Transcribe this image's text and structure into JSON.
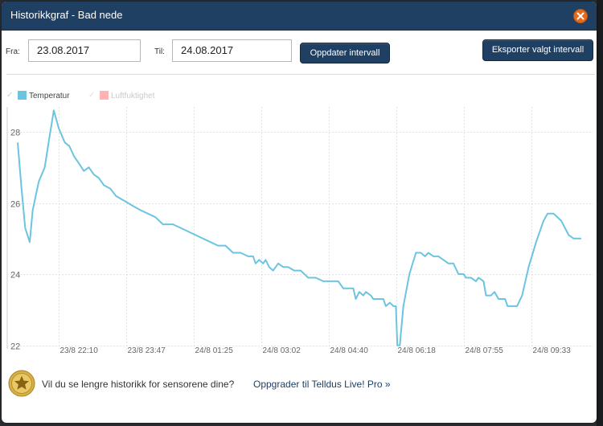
{
  "window": {
    "title": "Historikkgraf - Bad nede"
  },
  "controls": {
    "from_label": "Fra:",
    "from_value": "23.08.2017",
    "to_label": "Til:",
    "to_value": "24.08.2017",
    "update_button": "Oppdater intervall",
    "export_button": "Eksporter valgt intervall"
  },
  "legend": [
    {
      "label": "Temperatur",
      "color": "#6cc4e0",
      "active": true
    },
    {
      "label": "Luftfuktighet",
      "color": "#ffb3b3",
      "active": false
    }
  ],
  "chart_data": {
    "type": "line",
    "x_tick_labels": [
      "23/8 22:10",
      "23/8 23:47",
      "24/8 01:25",
      "24/8 03:02",
      "24/8 04:40",
      "24/8 06:18",
      "24/8 07:55",
      "24/8 09:33"
    ],
    "y_ticks": [
      22,
      24,
      26,
      28
    ],
    "ylim": [
      21.9,
      28.7
    ],
    "xlim": [
      0,
      100
    ],
    "grid": true,
    "series": [
      {
        "name": "Temperatur",
        "color": "#6cc4e0",
        "points": [
          [
            0,
            27.7
          ],
          [
            0.7,
            26.5
          ],
          [
            1.5,
            25.3
          ],
          [
            2.4,
            24.9
          ],
          [
            3.0,
            25.8
          ],
          [
            4.2,
            26.6
          ],
          [
            5.4,
            27.0
          ],
          [
            6.4,
            27.9
          ],
          [
            7.2,
            28.6
          ],
          [
            8.2,
            28.1
          ],
          [
            9.4,
            27.7
          ],
          [
            10.3,
            27.6
          ],
          [
            11.3,
            27.3
          ],
          [
            12.3,
            27.1
          ],
          [
            13.2,
            26.9
          ],
          [
            14.2,
            27.0
          ],
          [
            15.2,
            26.8
          ],
          [
            16.2,
            26.7
          ],
          [
            17.2,
            26.5
          ],
          [
            18.5,
            26.4
          ],
          [
            19.6,
            26.2
          ],
          [
            20.8,
            26.1
          ],
          [
            22.0,
            26.0
          ],
          [
            23.2,
            25.9
          ],
          [
            24.5,
            25.8
          ],
          [
            26.0,
            25.7
          ],
          [
            27.5,
            25.6
          ],
          [
            29.0,
            25.4
          ],
          [
            31.0,
            25.4
          ],
          [
            32.5,
            25.3
          ],
          [
            34.0,
            25.2
          ],
          [
            35.5,
            25.1
          ],
          [
            37.0,
            25.0
          ],
          [
            38.5,
            24.9
          ],
          [
            40.0,
            24.8
          ],
          [
            41.5,
            24.8
          ],
          [
            43.0,
            24.6
          ],
          [
            44.5,
            24.6
          ],
          [
            46.0,
            24.5
          ],
          [
            47.0,
            24.5
          ],
          [
            47.5,
            24.3
          ],
          [
            48.2,
            24.4
          ],
          [
            49.0,
            24.3
          ],
          [
            49.5,
            24.4
          ],
          [
            50.2,
            24.2
          ],
          [
            51.0,
            24.1
          ],
          [
            52.0,
            24.3
          ],
          [
            53.0,
            24.2
          ],
          [
            54.0,
            24.2
          ],
          [
            55.2,
            24.1
          ],
          [
            56.5,
            24.1
          ],
          [
            58.0,
            23.9
          ],
          [
            59.5,
            23.9
          ],
          [
            61.0,
            23.8
          ],
          [
            62.5,
            23.8
          ],
          [
            64.0,
            23.8
          ],
          [
            65.0,
            23.6
          ],
          [
            66.0,
            23.6
          ],
          [
            67.0,
            23.6
          ],
          [
            67.5,
            23.3
          ],
          [
            68.2,
            23.5
          ],
          [
            69.0,
            23.4
          ],
          [
            69.5,
            23.5
          ],
          [
            70.5,
            23.4
          ],
          [
            71.0,
            23.3
          ],
          [
            72.0,
            23.3
          ],
          [
            73.0,
            23.3
          ],
          [
            73.5,
            23.1
          ],
          [
            74.3,
            23.2
          ],
          [
            75.0,
            23.1
          ],
          [
            75.5,
            23.1
          ],
          [
            75.8,
            22.0
          ],
          [
            76.3,
            22.0
          ],
          [
            77.0,
            23.1
          ],
          [
            78.2,
            24.0
          ],
          [
            79.5,
            24.6
          ],
          [
            80.5,
            24.6
          ],
          [
            81.3,
            24.5
          ],
          [
            82.0,
            24.6
          ],
          [
            83.0,
            24.5
          ],
          [
            84.0,
            24.5
          ],
          [
            85.0,
            24.4
          ],
          [
            86.0,
            24.3
          ],
          [
            87.0,
            24.3
          ],
          [
            88.0,
            24.0
          ],
          [
            89.0,
            24.0
          ],
          [
            89.5,
            23.9
          ],
          [
            90.5,
            23.9
          ],
          [
            91.5,
            23.8
          ],
          [
            92.0,
            23.9
          ],
          [
            93.0,
            23.8
          ],
          [
            93.5,
            23.4
          ],
          [
            94.5,
            23.4
          ],
          [
            95.2,
            23.5
          ],
          [
            96.0,
            23.3
          ],
          [
            97.3,
            23.3
          ],
          [
            97.8,
            23.1
          ],
          [
            99.0,
            23.1
          ],
          [
            99.7,
            23.1
          ]
        ],
        "points_tail": [
          [
            100.7,
            23.4
          ],
          [
            102.0,
            24.2
          ],
          [
            103.5,
            24.9
          ],
          [
            105.0,
            25.5
          ],
          [
            105.8,
            25.7
          ],
          [
            107.0,
            25.7
          ],
          [
            108.5,
            25.5
          ],
          [
            110.0,
            25.1
          ],
          [
            111.0,
            25.0
          ],
          [
            112.5,
            25.0
          ]
        ]
      }
    ]
  },
  "footer": {
    "upgrade_question": "Vil du se lengre historikk for sensorene dine?",
    "upgrade_link": "Oppgrader til Telldus Live! Pro »"
  },
  "colors": {
    "title_bar": "#1f3f63",
    "button": "#1f3f63",
    "close_button": "#e46a1c",
    "grid": "#e3e3e3",
    "line": "#6cc4e0"
  }
}
